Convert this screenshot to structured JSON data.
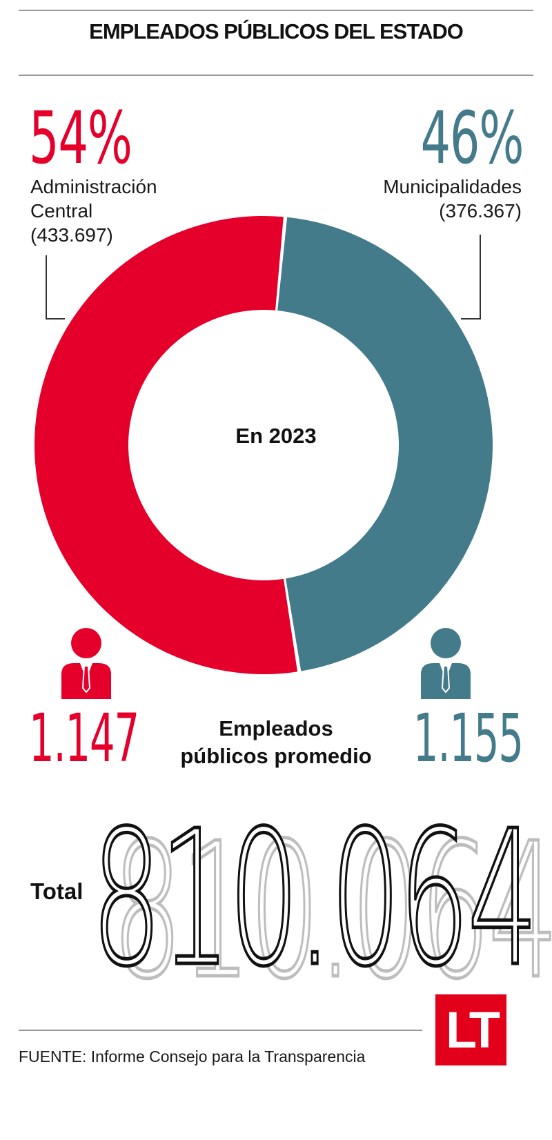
{
  "header": {
    "title": "EMPLEADOS PÚBLICOS DEL ESTADO"
  },
  "colors": {
    "central": "#e4002b",
    "municipal": "#447b8a"
  },
  "chart_data": {
    "type": "pie",
    "center_label": "En 2023",
    "slices": [
      {
        "label": "Administración Central",
        "percent": 54,
        "percent_text": "54%",
        "value": 433697,
        "value_text": "(433.697)",
        "label_lines": [
          "Administración",
          "Central",
          "(433.697)"
        ],
        "color": "#e4002b"
      },
      {
        "label": "Municipalidades",
        "percent": 46,
        "percent_text": "46%",
        "value": 376367,
        "value_text": "(376.367)",
        "label_lines": [
          "Municipalidades",
          "(376.367)"
        ],
        "color": "#447b8a"
      }
    ]
  },
  "averages": {
    "caption_lines": [
      "Empleados",
      "públicos promedio"
    ],
    "central": "1.147",
    "municipal": "1.155",
    "icon": "person-icon"
  },
  "total": {
    "label": "Total",
    "value": "810.064"
  },
  "footer": {
    "source": "FUENTE: Informe Consejo para la Transparencia",
    "logo": "LT"
  }
}
